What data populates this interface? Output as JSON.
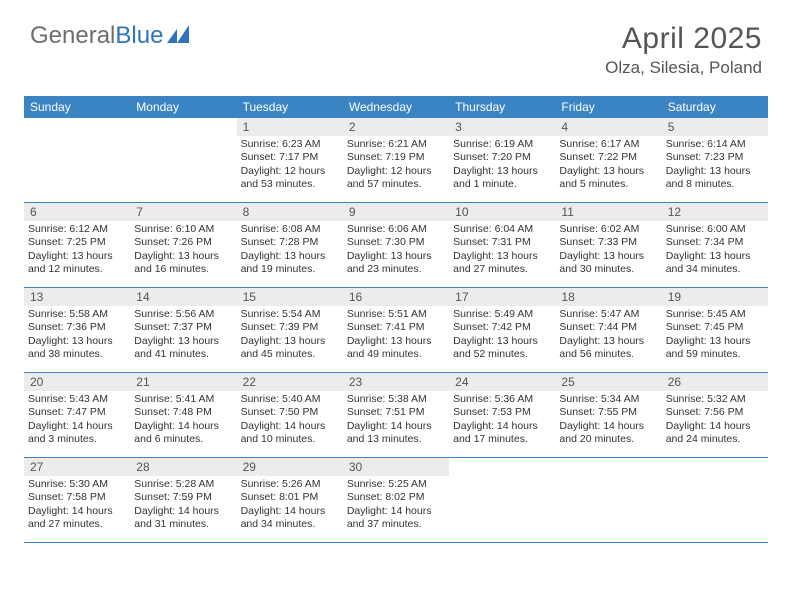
{
  "brand": {
    "text_general": "General",
    "text_blue": "Blue",
    "general_color": "#6d6e71",
    "blue_color": "#2f73b8",
    "mark_color": "#2f73b8"
  },
  "header": {
    "month_title": "April 2025",
    "location": "Olza, Silesia, Poland"
  },
  "colors": {
    "header_bg": "#3b84c4",
    "header_text": "#ffffff",
    "daynum_bg": "#ececec",
    "daynum_text": "#555555",
    "body_text": "#333333",
    "divider": "#3b84c4",
    "page_bg": "#ffffff"
  },
  "day_names": [
    "Sunday",
    "Monday",
    "Tuesday",
    "Wednesday",
    "Thursday",
    "Friday",
    "Saturday"
  ],
  "weeks": [
    [
      {
        "num": "",
        "sunrise": "",
        "sunset": "",
        "daylight": ""
      },
      {
        "num": "",
        "sunrise": "",
        "sunset": "",
        "daylight": ""
      },
      {
        "num": "1",
        "sunrise": "Sunrise: 6:23 AM",
        "sunset": "Sunset: 7:17 PM",
        "daylight": "Daylight: 12 hours and 53 minutes."
      },
      {
        "num": "2",
        "sunrise": "Sunrise: 6:21 AM",
        "sunset": "Sunset: 7:19 PM",
        "daylight": "Daylight: 12 hours and 57 minutes."
      },
      {
        "num": "3",
        "sunrise": "Sunrise: 6:19 AM",
        "sunset": "Sunset: 7:20 PM",
        "daylight": "Daylight: 13 hours and 1 minute."
      },
      {
        "num": "4",
        "sunrise": "Sunrise: 6:17 AM",
        "sunset": "Sunset: 7:22 PM",
        "daylight": "Daylight: 13 hours and 5 minutes."
      },
      {
        "num": "5",
        "sunrise": "Sunrise: 6:14 AM",
        "sunset": "Sunset: 7:23 PM",
        "daylight": "Daylight: 13 hours and 8 minutes."
      }
    ],
    [
      {
        "num": "6",
        "sunrise": "Sunrise: 6:12 AM",
        "sunset": "Sunset: 7:25 PM",
        "daylight": "Daylight: 13 hours and 12 minutes."
      },
      {
        "num": "7",
        "sunrise": "Sunrise: 6:10 AM",
        "sunset": "Sunset: 7:26 PM",
        "daylight": "Daylight: 13 hours and 16 minutes."
      },
      {
        "num": "8",
        "sunrise": "Sunrise: 6:08 AM",
        "sunset": "Sunset: 7:28 PM",
        "daylight": "Daylight: 13 hours and 19 minutes."
      },
      {
        "num": "9",
        "sunrise": "Sunrise: 6:06 AM",
        "sunset": "Sunset: 7:30 PM",
        "daylight": "Daylight: 13 hours and 23 minutes."
      },
      {
        "num": "10",
        "sunrise": "Sunrise: 6:04 AM",
        "sunset": "Sunset: 7:31 PM",
        "daylight": "Daylight: 13 hours and 27 minutes."
      },
      {
        "num": "11",
        "sunrise": "Sunrise: 6:02 AM",
        "sunset": "Sunset: 7:33 PM",
        "daylight": "Daylight: 13 hours and 30 minutes."
      },
      {
        "num": "12",
        "sunrise": "Sunrise: 6:00 AM",
        "sunset": "Sunset: 7:34 PM",
        "daylight": "Daylight: 13 hours and 34 minutes."
      }
    ],
    [
      {
        "num": "13",
        "sunrise": "Sunrise: 5:58 AM",
        "sunset": "Sunset: 7:36 PM",
        "daylight": "Daylight: 13 hours and 38 minutes."
      },
      {
        "num": "14",
        "sunrise": "Sunrise: 5:56 AM",
        "sunset": "Sunset: 7:37 PM",
        "daylight": "Daylight: 13 hours and 41 minutes."
      },
      {
        "num": "15",
        "sunrise": "Sunrise: 5:54 AM",
        "sunset": "Sunset: 7:39 PM",
        "daylight": "Daylight: 13 hours and 45 minutes."
      },
      {
        "num": "16",
        "sunrise": "Sunrise: 5:51 AM",
        "sunset": "Sunset: 7:41 PM",
        "daylight": "Daylight: 13 hours and 49 minutes."
      },
      {
        "num": "17",
        "sunrise": "Sunrise: 5:49 AM",
        "sunset": "Sunset: 7:42 PM",
        "daylight": "Daylight: 13 hours and 52 minutes."
      },
      {
        "num": "18",
        "sunrise": "Sunrise: 5:47 AM",
        "sunset": "Sunset: 7:44 PM",
        "daylight": "Daylight: 13 hours and 56 minutes."
      },
      {
        "num": "19",
        "sunrise": "Sunrise: 5:45 AM",
        "sunset": "Sunset: 7:45 PM",
        "daylight": "Daylight: 13 hours and 59 minutes."
      }
    ],
    [
      {
        "num": "20",
        "sunrise": "Sunrise: 5:43 AM",
        "sunset": "Sunset: 7:47 PM",
        "daylight": "Daylight: 14 hours and 3 minutes."
      },
      {
        "num": "21",
        "sunrise": "Sunrise: 5:41 AM",
        "sunset": "Sunset: 7:48 PM",
        "daylight": "Daylight: 14 hours and 6 minutes."
      },
      {
        "num": "22",
        "sunrise": "Sunrise: 5:40 AM",
        "sunset": "Sunset: 7:50 PM",
        "daylight": "Daylight: 14 hours and 10 minutes."
      },
      {
        "num": "23",
        "sunrise": "Sunrise: 5:38 AM",
        "sunset": "Sunset: 7:51 PM",
        "daylight": "Daylight: 14 hours and 13 minutes."
      },
      {
        "num": "24",
        "sunrise": "Sunrise: 5:36 AM",
        "sunset": "Sunset: 7:53 PM",
        "daylight": "Daylight: 14 hours and 17 minutes."
      },
      {
        "num": "25",
        "sunrise": "Sunrise: 5:34 AM",
        "sunset": "Sunset: 7:55 PM",
        "daylight": "Daylight: 14 hours and 20 minutes."
      },
      {
        "num": "26",
        "sunrise": "Sunrise: 5:32 AM",
        "sunset": "Sunset: 7:56 PM",
        "daylight": "Daylight: 14 hours and 24 minutes."
      }
    ],
    [
      {
        "num": "27",
        "sunrise": "Sunrise: 5:30 AM",
        "sunset": "Sunset: 7:58 PM",
        "daylight": "Daylight: 14 hours and 27 minutes."
      },
      {
        "num": "28",
        "sunrise": "Sunrise: 5:28 AM",
        "sunset": "Sunset: 7:59 PM",
        "daylight": "Daylight: 14 hours and 31 minutes."
      },
      {
        "num": "29",
        "sunrise": "Sunrise: 5:26 AM",
        "sunset": "Sunset: 8:01 PM",
        "daylight": "Daylight: 14 hours and 34 minutes."
      },
      {
        "num": "30",
        "sunrise": "Sunrise: 5:25 AM",
        "sunset": "Sunset: 8:02 PM",
        "daylight": "Daylight: 14 hours and 37 minutes."
      },
      {
        "num": "",
        "sunrise": "",
        "sunset": "",
        "daylight": ""
      },
      {
        "num": "",
        "sunrise": "",
        "sunset": "",
        "daylight": ""
      },
      {
        "num": "",
        "sunrise": "",
        "sunset": "",
        "daylight": ""
      }
    ]
  ]
}
